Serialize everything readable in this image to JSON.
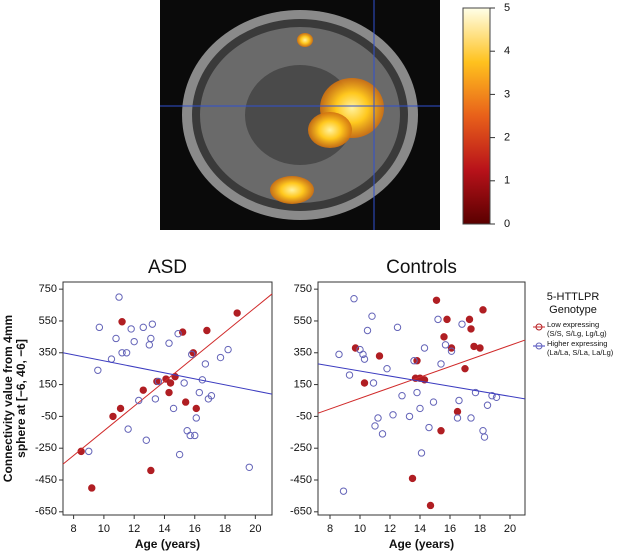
{
  "chart_data": [
    {
      "type": "colorbar",
      "ylim": [
        0,
        5
      ],
      "yticks": [
        0,
        1,
        2,
        3,
        4,
        5
      ],
      "colormap": [
        "#5a0000",
        "#b8121a",
        "#e8601a",
        "#ffc21e",
        "#ffffe8"
      ]
    },
    {
      "type": "scatter",
      "title": "ASD",
      "x_label": "Age (years)",
      "y_label": [
        "Connectivity value from 4mm",
        "sphere at [−6, 40, −6]"
      ],
      "xlim": [
        7.3,
        21.1
      ],
      "ylim": [
        -670,
        795
      ],
      "xticks": [
        8,
        10,
        12,
        14,
        16,
        18,
        20
      ],
      "yticks": [
        750,
        550,
        350,
        150,
        -50,
        -250,
        -450,
        -650
      ],
      "series": [
        {
          "color": "#b01e23",
          "filled": true,
          "x": [
            8.5,
            9.2,
            10.6,
            11.1,
            11.2,
            12.6,
            13.1,
            13.5,
            14.1,
            14.3,
            14.4,
            14.7,
            15.2,
            15.4,
            15.9,
            16.1,
            16.8,
            18.8
          ],
          "values": [
            -270,
            -500,
            -50,
            0,
            545,
            115,
            -390,
            170,
            185,
            100,
            160,
            200,
            480,
            40,
            350,
            0,
            490,
            600
          ],
          "fit": {
            "color": "#d02a2a",
            "x": [
              7.3,
              21.1
            ],
            "values": [
              -350,
              720
            ]
          }
        },
        {
          "color": "#6464b8",
          "filled": false,
          "x": [
            9.0,
            9.6,
            9.7,
            10.5,
            10.8,
            11.0,
            11.2,
            11.5,
            11.6,
            11.8,
            12.0,
            12.3,
            12.6,
            12.8,
            13.0,
            13.1,
            13.2,
            13.4,
            13.6,
            14.3,
            14.6,
            14.9,
            15.0,
            15.3,
            15.5,
            15.7,
            15.8,
            16.0,
            16.1,
            16.3,
            16.5,
            16.7,
            16.9,
            17.1,
            17.7,
            18.2,
            19.6
          ],
          "values": [
            -270,
            240,
            510,
            310,
            440,
            700,
            350,
            350,
            -130,
            500,
            420,
            50,
            510,
            -200,
            400,
            440,
            530,
            60,
            170,
            410,
            0,
            470,
            -290,
            160,
            -140,
            -170,
            340,
            -170,
            -60,
            100,
            180,
            280,
            60,
            80,
            320,
            370,
            -370
          ],
          "fit": {
            "color": "#3c3cc0",
            "x": [
              7.3,
              21.1
            ],
            "values": [
              350,
              90
            ]
          }
        }
      ]
    },
    {
      "type": "scatter",
      "title": "Controls",
      "x_label": "Age (years)",
      "xlim": [
        7.2,
        21.0
      ],
      "ylim": [
        -670,
        795
      ],
      "xticks": [
        8,
        10,
        12,
        14,
        16,
        18,
        20
      ],
      "yticks": [
        750,
        550,
        350,
        150,
        -50,
        -250,
        -450,
        -650
      ],
      "legend_title": [
        "5-HTTLPR",
        "Genotype"
      ],
      "series": [
        {
          "name": "Low expressing",
          "name_detail": "(S/S, S/Lg, Lg/Lg)",
          "color": "#b01e23",
          "filled": true,
          "x": [
            9.7,
            10.3,
            11.3,
            13.5,
            13.7,
            13.8,
            14.0,
            14.3,
            14.7,
            15.1,
            15.4,
            15.6,
            15.8,
            16.1,
            16.5,
            17.0,
            17.3,
            17.4,
            17.6,
            18.0,
            18.2
          ],
          "values": [
            380,
            160,
            330,
            -440,
            190,
            300,
            190,
            180,
            -610,
            680,
            -140,
            450,
            560,
            380,
            -20,
            250,
            560,
            500,
            390,
            380,
            620
          ],
          "fit": {
            "color": "#d02a2a",
            "x": [
              7.2,
              21.0
            ],
            "values": [
              -30,
              430
            ]
          }
        },
        {
          "name": "Higher expressing",
          "name_detail": "(La/La, S/La, La/Lg)",
          "color": "#6464b8",
          "filled": false,
          "x": [
            8.6,
            8.9,
            9.3,
            9.6,
            10.0,
            10.2,
            10.3,
            10.5,
            10.8,
            10.9,
            11.0,
            11.2,
            11.5,
            11.8,
            12.2,
            12.5,
            12.8,
            13.3,
            13.6,
            13.8,
            14.0,
            14.1,
            14.3,
            14.6,
            14.9,
            15.2,
            15.4,
            15.7,
            16.1,
            16.5,
            16.6,
            16.8,
            17.4,
            17.7,
            18.2,
            18.3,
            18.5,
            18.8,
            19.1
          ],
          "values": [
            340,
            -520,
            210,
            690,
            370,
            340,
            310,
            490,
            580,
            160,
            -110,
            -60,
            -160,
            250,
            -40,
            510,
            80,
            -50,
            300,
            100,
            0,
            -280,
            380,
            -120,
            40,
            560,
            280,
            400,
            360,
            -60,
            50,
            530,
            -60,
            100,
            -140,
            -180,
            20,
            80,
            70
          ],
          "fit": {
            "color": "#3c3cc0",
            "x": [
              7.2,
              21.0
            ],
            "values": [
              280,
              60
            ]
          }
        }
      ]
    }
  ]
}
